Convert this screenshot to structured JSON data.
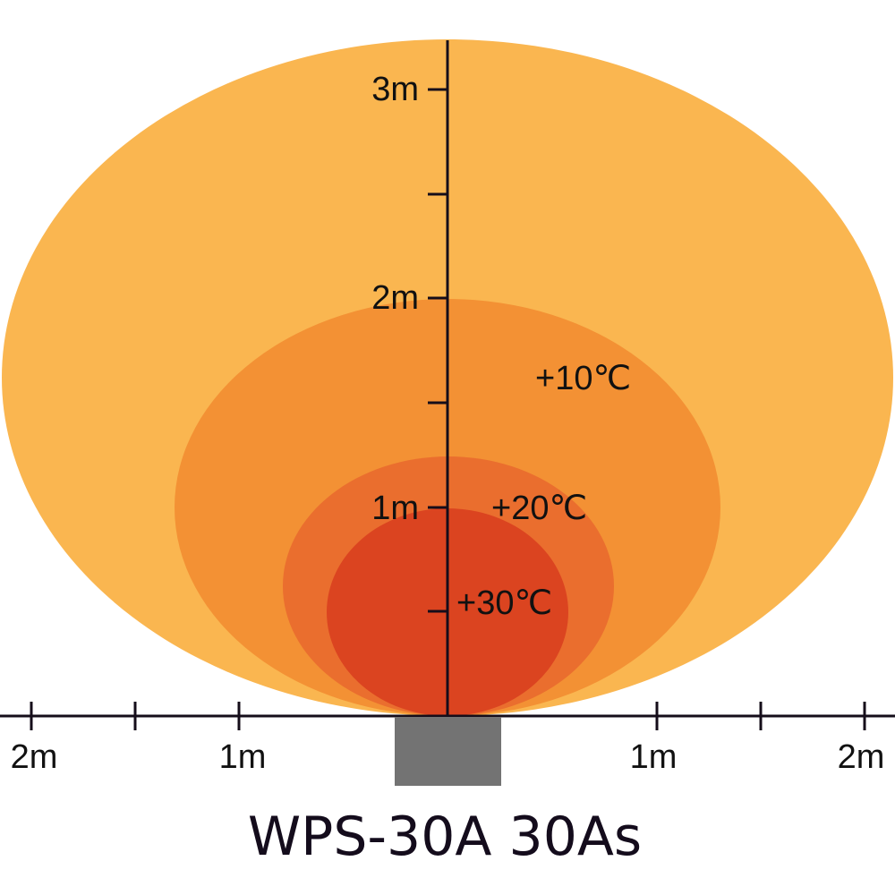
{
  "colors": {
    "zone_outer": "#FAB650",
    "zone_10": "#F39134",
    "zone_20": "#EA6E2E",
    "zone_30": "#DB4420",
    "axis": "#150d1a",
    "heater": "#737373"
  },
  "zones": [
    {
      "label": ""
    },
    {
      "label": "+10℃"
    },
    {
      "label": "+20℃"
    },
    {
      "label": "+30℃"
    }
  ],
  "vertical_axis": {
    "ticks": [
      "1m",
      "2m",
      "3m"
    ]
  },
  "horizontal_axis": {
    "ticks_left": [
      "2m",
      "1m"
    ],
    "ticks_right": [
      "1m",
      "2m"
    ]
  },
  "title": "WPS-30A 30As"
}
